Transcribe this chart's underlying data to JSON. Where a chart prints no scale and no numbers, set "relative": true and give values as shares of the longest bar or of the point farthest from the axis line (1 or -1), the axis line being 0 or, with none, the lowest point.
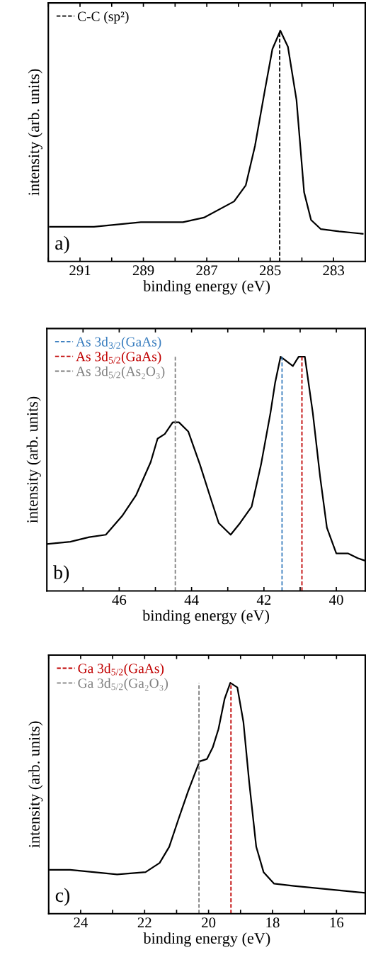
{
  "chart_data": [
    {
      "type": "line",
      "xlabel": "binding energy (eV)",
      "ylabel": "intensity (arb. units)",
      "relative": true,
      "xlim": [
        292,
        282
      ],
      "xticks": [
        {
          "value": 292,
          "label": null
        },
        291,
        {
          "value": 290,
          "label": null
        },
        289,
        {
          "value": 288,
          "label": null
        },
        287,
        {
          "value": 286,
          "label": null
        },
        285,
        {
          "value": 284,
          "label": null
        },
        283
      ],
      "x": [
        291.95,
        290.56,
        289.08,
        287.75,
        287.09,
        286.14,
        285.77,
        285.48,
        285.17,
        284.93,
        284.68,
        284.44,
        284.17,
        283.93,
        283.71,
        283.4,
        282.83,
        282.08
      ],
      "series": [
        {
          "color": "#000000",
          "values": [
            0.15,
            0.15,
            0.17,
            0.17,
            0.19,
            0.26,
            0.33,
            0.5,
            0.74,
            0.92,
            1.0,
            0.93,
            0.7,
            0.3,
            0.18,
            0.14,
            0.13,
            0.12
          ]
        }
      ],
      "ref_lines": [
        {
          "axis": "x",
          "value": 284.7,
          "label": "C-C (sp²)",
          "color": "#000000",
          "line_style": "dashed"
        }
      ],
      "legend": "top left",
      "annotations": [
        "a)"
      ]
    },
    {
      "type": "line",
      "xlabel": "binding energy (eV)",
      "ylabel": "intensity (arb. units)",
      "relative": true,
      "xlim": [
        48,
        39.2
      ],
      "xticks": [
        {
          "value": 47,
          "label": null
        },
        46,
        {
          "value": 45,
          "label": null
        },
        44,
        {
          "value": 43,
          "label": null
        },
        42,
        {
          "value": 41,
          "label": null
        },
        40
      ],
      "x": [
        48.0,
        47.35,
        46.83,
        46.37,
        45.92,
        45.53,
        45.13,
        44.94,
        44.74,
        44.52,
        44.35,
        44.09,
        43.77,
        43.44,
        43.25,
        42.92,
        42.66,
        42.34,
        42.08,
        41.82,
        41.69,
        41.54,
        41.2,
        41.04,
        40.87,
        40.65,
        40.45,
        40.26,
        40.0,
        39.67,
        39.41,
        39.22
      ],
      "series": [
        {
          "color": "#000000",
          "values": [
            0.2,
            0.21,
            0.23,
            0.24,
            0.32,
            0.41,
            0.55,
            0.65,
            0.67,
            0.72,
            0.72,
            0.68,
            0.54,
            0.38,
            0.29,
            0.24,
            0.29,
            0.36,
            0.54,
            0.76,
            0.89,
            1.0,
            0.96,
            1.0,
            1.0,
            0.76,
            0.49,
            0.27,
            0.16,
            0.16,
            0.14,
            0.13
          ]
        }
      ],
      "ref_lines": [
        {
          "axis": "x",
          "value": 41.5,
          "label": "As 3d$_{3/2}$(GaAs)",
          "color": "#3a7ebf",
          "line_style": "dashed"
        },
        {
          "axis": "x",
          "value": 40.95,
          "label": "As 3d$_{5/2}$(GaAs)",
          "color": "#c00000",
          "line_style": "dashed"
        },
        {
          "axis": "x",
          "value": 44.45,
          "label": "As 3d$_{5/2}$(As₂O₃)",
          "color": "#808080",
          "line_style": "dashed"
        }
      ],
      "legend": "top left",
      "annotations": [
        "b)"
      ]
    },
    {
      "type": "line",
      "xlabel": "binding energy (eV)",
      "ylabel": "intensity (arb. units)",
      "relative": true,
      "xlim": [
        25,
        15.1
      ],
      "xticks": [
        {
          "value": 25,
          "label": null
        },
        24,
        {
          "value": 23,
          "label": null
        },
        22,
        {
          "value": 21,
          "label": null
        },
        20,
        {
          "value": 19,
          "label": null
        },
        18,
        {
          "value": 17,
          "label": null
        },
        16
      ],
      "x": [
        24.96,
        24.33,
        23.59,
        22.86,
        21.97,
        21.53,
        21.23,
        20.94,
        20.64,
        20.42,
        20.28,
        20.05,
        19.87,
        19.69,
        19.5,
        19.32,
        19.1,
        18.91,
        18.73,
        18.51,
        18.28,
        17.95,
        17.33,
        16.59,
        15.85,
        15.11
      ],
      "series": [
        {
          "color": "#000000",
          "values": [
            0.19,
            0.19,
            0.18,
            0.17,
            0.18,
            0.22,
            0.29,
            0.41,
            0.53,
            0.61,
            0.66,
            0.67,
            0.72,
            0.8,
            0.93,
            1.0,
            0.98,
            0.83,
            0.57,
            0.29,
            0.18,
            0.13,
            0.12,
            0.11,
            0.1,
            0.09
          ]
        }
      ],
      "ref_lines": [
        {
          "axis": "x",
          "value": 19.3,
          "label": "Ga 3d$_{5/2}$(GaAs)",
          "color": "#c00000",
          "line_style": "dashed"
        },
        {
          "axis": "x",
          "value": 20.3,
          "label": "Ga 3d$_{5/2}$(Ga₂O₃)",
          "color": "#808080",
          "line_style": "dashed"
        }
      ],
      "legend": "top left",
      "annotations": [
        "c)"
      ]
    }
  ]
}
